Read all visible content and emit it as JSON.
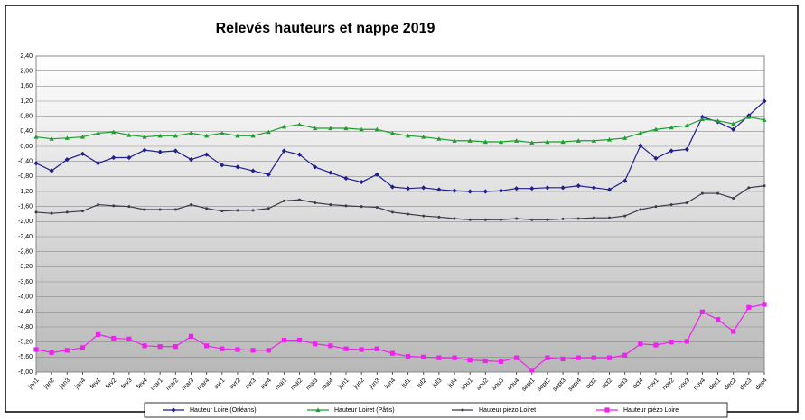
{
  "chart_data": {
    "type": "line",
    "title": "Relevés hauteurs et nappe 2019",
    "categories": [
      "jan1",
      "jan2",
      "jan3",
      "jan4",
      "fev1",
      "fev2",
      "fev3",
      "fev4",
      "mar1",
      "mar2",
      "mar3",
      "mar4",
      "avr1",
      "avr2",
      "avr3",
      "avr4",
      "mai1",
      "mai2",
      "mai3",
      "mai4",
      "jun1",
      "jun2",
      "jun3",
      "jun4",
      "jul1",
      "jul2",
      "jul3",
      "jul4",
      "aou1",
      "aou2",
      "aou3",
      "aou4",
      "sept1",
      "sept2",
      "sept3",
      "sept4",
      "oct1",
      "oct2",
      "oct3",
      "oct4",
      "nov1",
      "nov2",
      "nov3",
      "nov4",
      "dec1",
      "dec2",
      "dec3",
      "dec4"
    ],
    "series": [
      {
        "name": "Hauteur Loire (Orléans)",
        "color": "#1f1f8f",
        "marker": "diamond",
        "values": [
          -0.45,
          -0.65,
          -0.35,
          -0.2,
          -0.45,
          -0.3,
          -0.3,
          -0.1,
          -0.15,
          -0.12,
          -0.35,
          -0.22,
          -0.5,
          -0.55,
          -0.65,
          -0.75,
          -0.12,
          -0.22,
          -0.55,
          -0.7,
          -0.85,
          -0.95,
          -0.75,
          -1.08,
          -1.12,
          -1.1,
          -1.15,
          -1.18,
          -1.2,
          -1.2,
          -1.18,
          -1.12,
          -1.12,
          -1.1,
          -1.1,
          -1.05,
          -1.1,
          -1.15,
          -0.92,
          0.02,
          -0.32,
          -0.12,
          -0.08,
          0.78,
          0.65,
          0.45,
          0.82,
          1.2
        ]
      },
      {
        "name": "Hauteur Loiret (Pâtis)",
        "color": "#1e9e2e",
        "marker": "triangle",
        "values": [
          0.25,
          0.2,
          0.22,
          0.25,
          0.35,
          0.38,
          0.3,
          0.25,
          0.28,
          0.28,
          0.35,
          0.28,
          0.35,
          0.28,
          0.28,
          0.38,
          0.52,
          0.58,
          0.48,
          0.48,
          0.48,
          0.45,
          0.45,
          0.35,
          0.28,
          0.25,
          0.2,
          0.15,
          0.15,
          0.12,
          0.12,
          0.15,
          0.1,
          0.12,
          0.12,
          0.15,
          0.15,
          0.18,
          0.22,
          0.35,
          0.45,
          0.5,
          0.55,
          0.72,
          0.68,
          0.6,
          0.78,
          0.7
        ]
      },
      {
        "name": "Hauteur piézo Loiret",
        "color": "#3a3a4a",
        "marker": "dot",
        "values": [
          -1.75,
          -1.78,
          -1.75,
          -1.72,
          -1.55,
          -1.58,
          -1.6,
          -1.68,
          -1.68,
          -1.68,
          -1.55,
          -1.65,
          -1.72,
          -1.7,
          -1.7,
          -1.65,
          -1.45,
          -1.42,
          -1.5,
          -1.55,
          -1.58,
          -1.6,
          -1.62,
          -1.75,
          -1.8,
          -1.85,
          -1.88,
          -1.92,
          -1.95,
          -1.95,
          -1.95,
          -1.92,
          -1.95,
          -1.95,
          -1.93,
          -1.92,
          -1.9,
          -1.9,
          -1.85,
          -1.68,
          -1.6,
          -1.55,
          -1.5,
          -1.25,
          -1.25,
          -1.38,
          -1.1,
          -1.05
        ]
      },
      {
        "name": "Hauteur piézo Loire",
        "color": "#ee22ee",
        "marker": "square",
        "values": [
          -5.4,
          -5.48,
          -5.42,
          -5.35,
          -5.0,
          -5.1,
          -5.12,
          -5.3,
          -5.32,
          -5.32,
          -5.05,
          -5.3,
          -5.38,
          -5.4,
          -5.42,
          -5.42,
          -5.15,
          -5.15,
          -5.25,
          -5.3,
          -5.38,
          -5.4,
          -5.38,
          -5.5,
          -5.58,
          -5.6,
          -5.62,
          -5.62,
          -5.68,
          -5.7,
          -5.72,
          -5.62,
          -5.95,
          -5.62,
          -5.65,
          -5.62,
          -5.62,
          -5.62,
          -5.55,
          -5.25,
          -5.28,
          -5.2,
          -5.18,
          -4.4,
          -4.6,
          -4.92,
          -4.28,
          -4.2
        ]
      }
    ],
    "ylim": [
      -6,
      2.4
    ],
    "yticks": [
      {
        "value": 2.4,
        "label": "2,40"
      },
      {
        "value": 2,
        "label": "2,00"
      },
      {
        "value": 1.6,
        "label": "1,60"
      },
      {
        "value": 1.2,
        "label": "1,20"
      },
      {
        "value": 0.8,
        "label": "0,80"
      },
      {
        "value": 0.4,
        "label": "0,40"
      },
      {
        "value": 0,
        "label": "0,00"
      },
      {
        "value": -0.4,
        "label": "-0,40"
      },
      {
        "value": -0.8,
        "label": "-0,80"
      },
      {
        "value": -1.2,
        "label": "-1,20"
      },
      {
        "value": -1.6,
        "label": "-1,60"
      },
      {
        "value": -2,
        "label": "-2,00"
      },
      {
        "value": -2.4,
        "label": "-2,40"
      },
      {
        "value": -2.8,
        "label": "-2,80"
      },
      {
        "value": -3.2,
        "label": "-3,20"
      },
      {
        "value": -3.6,
        "label": "-3,60"
      },
      {
        "value": -4,
        "label": "-4,00"
      },
      {
        "value": -4.4,
        "label": "-4,40"
      },
      {
        "value": -4.8,
        "label": "-4,80"
      },
      {
        "value": -5.2,
        "label": "-5,20"
      },
      {
        "value": -5.6,
        "label": "-5,60"
      },
      {
        "value": -6,
        "label": "-6,00"
      }
    ],
    "grid": true,
    "legend": "bottom"
  }
}
